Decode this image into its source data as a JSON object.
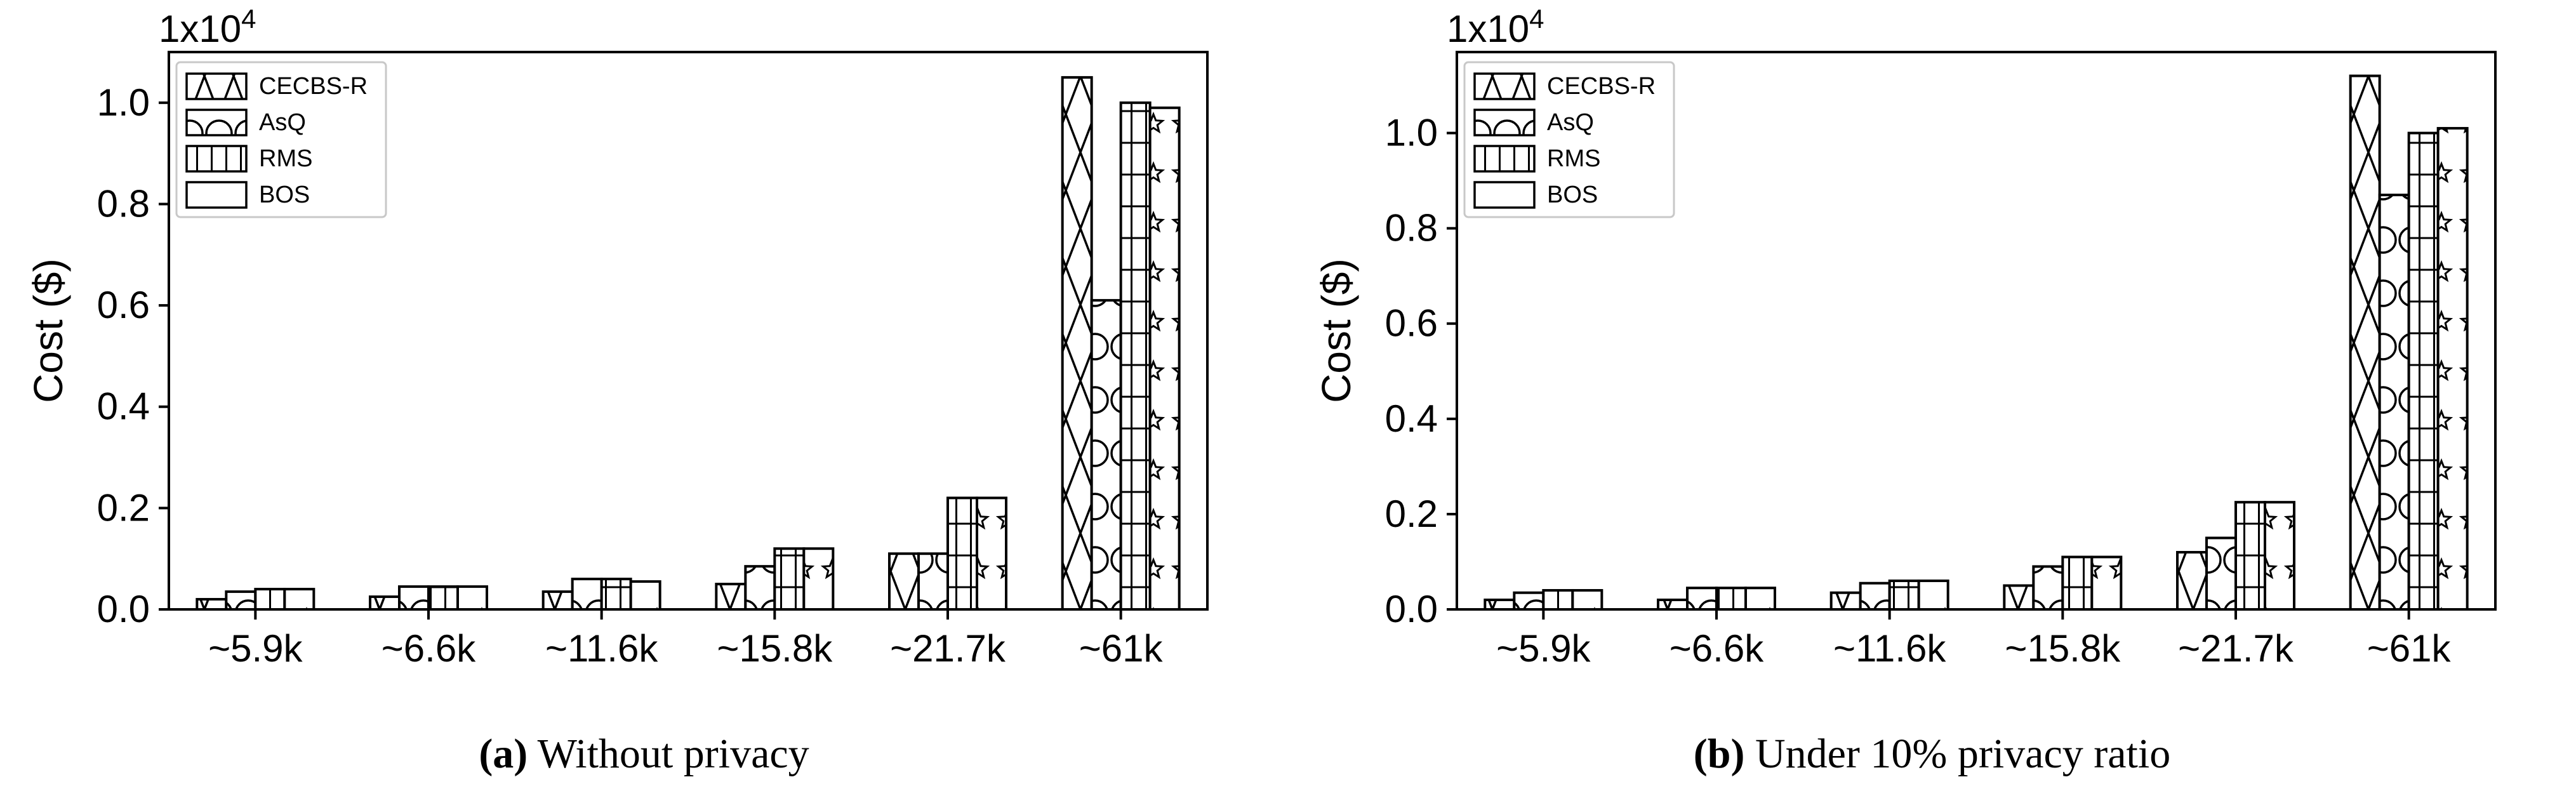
{
  "chart_data": [
    {
      "type": "bar",
      "categories": [
        "~5.9k",
        "~6.6k",
        "~11.6k",
        "~15.8k",
        "~21.7k",
        "~61k"
      ],
      "ylabel": "Cost ($)",
      "yscale_label": "1x10",
      "yscale_exp": "4",
      "ylim": [
        0,
        1.1
      ],
      "yticks": [
        "0.0",
        "0.2",
        "0.4",
        "0.6",
        "0.8",
        "1.0"
      ],
      "legend_position": "upper-left",
      "series": [
        {
          "name": "CECBS-R",
          "hatch": "x",
          "values": [
            0.02,
            0.025,
            0.035,
            0.05,
            0.11,
            1.05
          ]
        },
        {
          "name": "AsQ",
          "hatch": "o",
          "values": [
            0.035,
            0.045,
            0.06,
            0.085,
            0.11,
            0.61
          ]
        },
        {
          "name": "RMS",
          "hatch": "+",
          "values": [
            0.04,
            0.045,
            0.06,
            0.12,
            0.22,
            1.0
          ]
        },
        {
          "name": "BOS",
          "hatch": "*",
          "values": [
            0.04,
            0.045,
            0.055,
            0.12,
            0.22,
            0.99
          ]
        }
      ],
      "caption_label": "(a)",
      "caption_text": " Without privacy"
    },
    {
      "type": "bar",
      "categories": [
        "~5.9k",
        "~6.6k",
        "~11.6k",
        "~15.8k",
        "~21.7k",
        "~61k"
      ],
      "ylabel": "Cost ($)",
      "yscale_label": "1x10",
      "yscale_exp": "4",
      "ylim": [
        0,
        1.17
      ],
      "yticks": [
        "0.0",
        "0.2",
        "0.4",
        "0.6",
        "0.8",
        "1.0"
      ],
      "legend_position": "upper-left",
      "series": [
        {
          "name": "CECBS-R",
          "hatch": "x",
          "values": [
            0.02,
            0.02,
            0.035,
            0.05,
            0.12,
            1.12
          ]
        },
        {
          "name": "AsQ",
          "hatch": "o",
          "values": [
            0.035,
            0.045,
            0.055,
            0.09,
            0.15,
            0.87
          ]
        },
        {
          "name": "RMS",
          "hatch": "+",
          "values": [
            0.04,
            0.045,
            0.06,
            0.11,
            0.225,
            1.0
          ]
        },
        {
          "name": "BOS",
          "hatch": "*",
          "values": [
            0.04,
            0.045,
            0.06,
            0.11,
            0.225,
            1.01
          ]
        }
      ],
      "caption_label": "(b)",
      "caption_text": " Under 10% privacy ratio"
    }
  ]
}
